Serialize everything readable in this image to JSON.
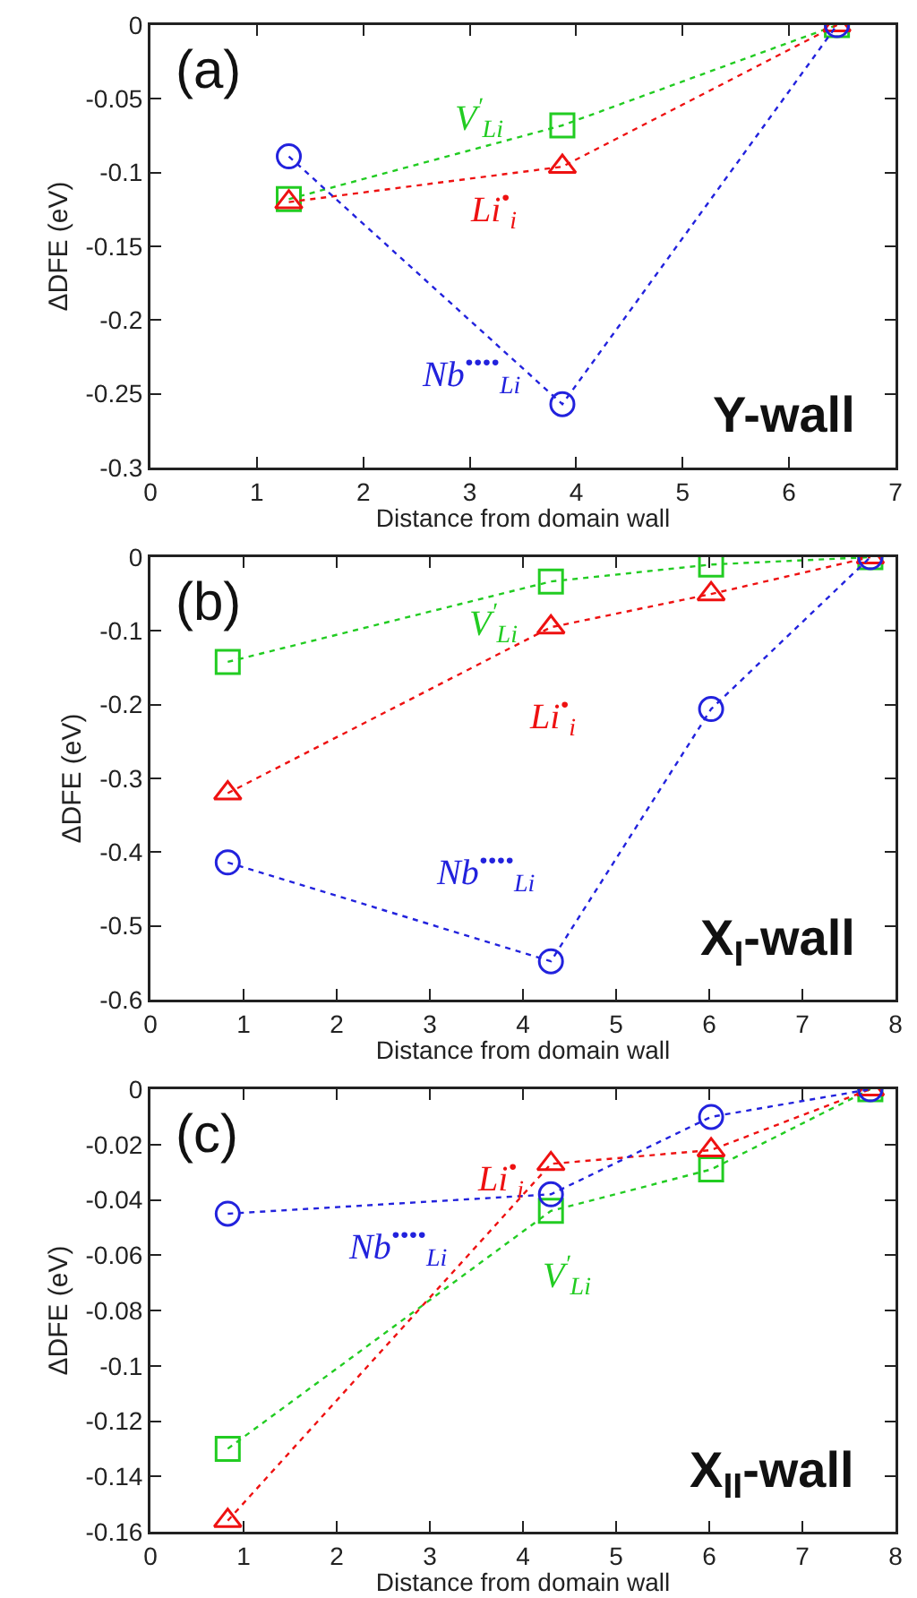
{
  "chart_data": [
    {
      "type": "line",
      "xlabel": "Distance from domain wall",
      "ylabel": "ΔDFE (eV)",
      "annotations": [
        "(a)",
        "Y-wall"
      ],
      "xlim": [
        0,
        7
      ],
      "xticks": [
        0,
        1,
        2,
        3,
        4,
        5,
        6,
        7
      ],
      "ylim": [
        -0.3,
        0
      ],
      "yticks": [
        -0.3,
        -0.25,
        -0.2,
        -0.15,
        -0.1,
        -0.05,
        0
      ],
      "grid": false,
      "legend": false,
      "line_style": "dotted",
      "x": [
        1.3,
        3.87,
        6.45
      ],
      "series": [
        {
          "name": "V$^{′}$$_{Li}$",
          "color": "#22cc22",
          "marker": "square",
          "values": [
            -0.118,
            -0.068,
            0
          ]
        },
        {
          "name": "Li$^{•}$$_{i}$",
          "color": "#ee1111",
          "marker": "triangle",
          "values": [
            -0.12,
            -0.096,
            0
          ]
        },
        {
          "name": "Nb$^{••••}$$_{Li}$",
          "color": "#2222dd",
          "marker": "circle",
          "values": [
            -0.089,
            -0.257,
            0
          ]
        }
      ]
    },
    {
      "type": "line",
      "xlabel": "Distance from domain wall",
      "ylabel": "ΔDFE (eV)",
      "annotations": [
        "(b)",
        "X$_{I}$-wall"
      ],
      "xlim": [
        0,
        8
      ],
      "xticks": [
        0,
        1,
        2,
        3,
        4,
        5,
        6,
        7,
        8
      ],
      "ylim": [
        -0.6,
        0
      ],
      "yticks": [
        -0.6,
        -0.5,
        -0.4,
        -0.3,
        -0.2,
        -0.1,
        0
      ],
      "grid": false,
      "legend": false,
      "line_style": "dotted",
      "x": [
        0.83,
        4.3,
        6.02,
        7.73
      ],
      "series": [
        {
          "name": "V$^{′}$$_{Li}$",
          "color": "#22cc22",
          "marker": "square",
          "values": [
            -0.142,
            -0.033,
            -0.01,
            0
          ]
        },
        {
          "name": "Li$^{•}$$_{i}$",
          "color": "#ee1111",
          "marker": "triangle",
          "values": [
            -0.32,
            -0.095,
            -0.05,
            0
          ]
        },
        {
          "name": "Nb$^{••••}$$_{Li}$",
          "color": "#2222dd",
          "marker": "circle",
          "values": [
            -0.414,
            -0.548,
            -0.206,
            0
          ]
        }
      ]
    },
    {
      "type": "line",
      "xlabel": "Distance from domain wall",
      "ylabel": "ΔDFE (eV)",
      "annotations": [
        "(c)",
        "X$_{II}$-wall"
      ],
      "xlim": [
        0,
        8
      ],
      "xticks": [
        0,
        1,
        2,
        3,
        4,
        5,
        6,
        7,
        8
      ],
      "ylim": [
        -0.16,
        0
      ],
      "yticks": [
        -0.16,
        -0.14,
        -0.12,
        -0.1,
        -0.08,
        -0.06,
        -0.04,
        -0.02,
        0
      ],
      "grid": false,
      "legend": false,
      "line_style": "dotted",
      "x": [
        0.83,
        4.3,
        6.02,
        7.73
      ],
      "series": [
        {
          "name": "V$^{′}$$_{Li}$",
          "color": "#22cc22",
          "marker": "square",
          "values": [
            -0.13,
            -0.044,
            -0.029,
            0
          ]
        },
        {
          "name": "Li$^{•}$$_{i}$",
          "color": "#ee1111",
          "marker": "triangle",
          "values": [
            -0.156,
            -0.027,
            -0.022,
            0
          ]
        },
        {
          "name": "Nb$^{••••}$$_{Li}$",
          "color": "#2222dd",
          "marker": "circle",
          "values": [
            -0.045,
            -0.038,
            -0.01,
            0
          ]
        }
      ]
    }
  ]
}
